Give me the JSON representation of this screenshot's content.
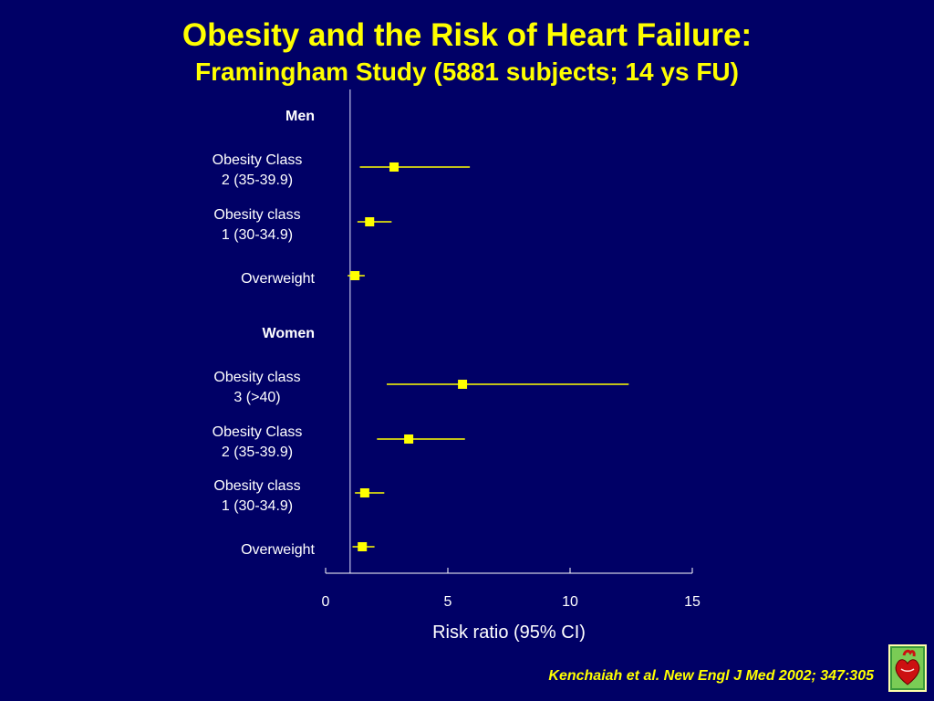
{
  "slide": {
    "title": "Obesity and the Risk of Heart Failure:",
    "subtitle": "Framingham Study (5881 subjects; 14 ys FU)",
    "citation": "Kenchaiah et al. New Engl J Med 2002; 347:305"
  },
  "logo": {
    "icon": "heart-logo-icon"
  },
  "colors": {
    "background": "#000066",
    "accent": "#FFFF00",
    "text": "#FFFFFF",
    "reference_line": "#9999CC"
  },
  "chart_data": {
    "type": "forest",
    "xlabel": "Risk ratio (95% CI)",
    "xlim": [
      0,
      15
    ],
    "x_ticks": [
      "0",
      "5",
      "10",
      "15"
    ],
    "reference_value": 1,
    "groups": [
      {
        "label": "Men",
        "rows": [
          {
            "label_lines": [
              "Obesity Class",
              "2 (35-39.9)"
            ],
            "estimate": 2.8,
            "ci": [
              1.4,
              5.9
            ]
          },
          {
            "label_lines": [
              "Obesity class",
              "1 (30-34.9)"
            ],
            "estimate": 1.8,
            "ci": [
              1.3,
              2.7
            ]
          },
          {
            "label_lines": [
              "Overweight"
            ],
            "estimate": 1.2,
            "ci": [
              0.9,
              1.6
            ]
          }
        ]
      },
      {
        "label": "Women",
        "rows": [
          {
            "label_lines": [
              "Obesity class",
              "3 (>40)"
            ],
            "estimate": 5.6,
            "ci": [
              2.5,
              12.4
            ]
          },
          {
            "label_lines": [
              "Obesity Class",
              "2 (35-39.9)"
            ],
            "estimate": 3.4,
            "ci": [
              2.1,
              5.7
            ]
          },
          {
            "label_lines": [
              "Obesity class",
              "1 (30-34.9)"
            ],
            "estimate": 1.6,
            "ci": [
              1.2,
              2.4
            ]
          },
          {
            "label_lines": [
              "Overweight"
            ],
            "estimate": 1.5,
            "ci": [
              1.1,
              2.0
            ]
          }
        ]
      }
    ]
  }
}
